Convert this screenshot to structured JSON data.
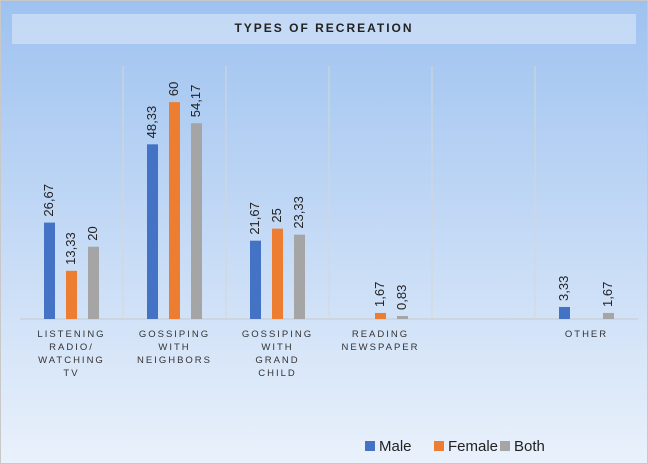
{
  "chart_data": {
    "type": "bar",
    "title": "TYPES OF RECREATION",
    "categories": [
      "LISTENING RADIO/ WATCHING TV",
      "GOSSIPING WITH NEIGHBORS",
      "GOSSIPING WITH GRAND CHILD",
      "READING NEWSPAPER",
      null,
      "OTHER"
    ],
    "series": [
      {
        "name": "Male",
        "color": "#4472c4",
        "values": [
          26.67,
          48.33,
          21.67,
          null,
          null,
          3.33
        ],
        "value_labels": [
          "26,67",
          "48,33",
          "21,67",
          null,
          null,
          "3,33"
        ]
      },
      {
        "name": "Female",
        "color": "#ed7d31",
        "values": [
          13.33,
          60,
          25,
          1.67,
          null,
          null
        ],
        "value_labels": [
          "13,33",
          "60",
          "25",
          "1,67",
          null,
          null
        ]
      },
      {
        "name": "Both",
        "color": "#a5a5a5",
        "values": [
          20,
          54.17,
          23.33,
          0.83,
          null,
          1.67
        ],
        "value_labels": [
          "20",
          "54,17",
          "23,33",
          "0,83",
          null,
          "1,67"
        ]
      }
    ],
    "ylim": [
      0,
      70
    ],
    "grid": true,
    "legend": "bottom"
  }
}
